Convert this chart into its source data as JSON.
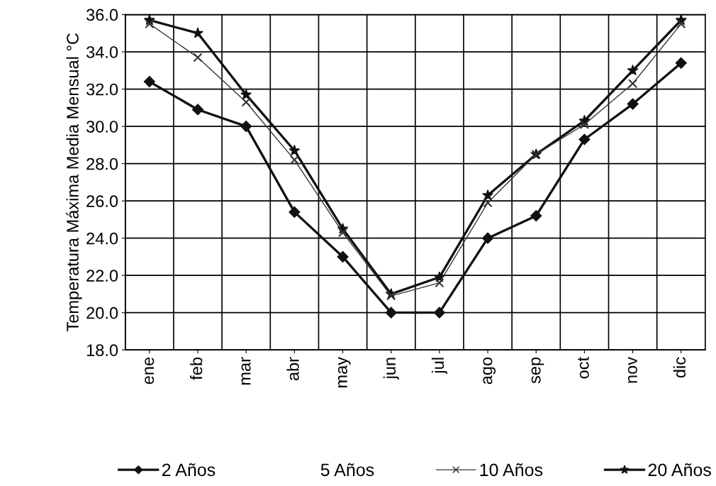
{
  "chart_data": {
    "type": "line",
    "ylabel": "Temperatura Máxima Media Mensual °C",
    "categories": [
      "ene",
      "feb",
      "mar",
      "abr",
      "may",
      "jun",
      "jul",
      "ago",
      "sep",
      "oct",
      "nov",
      "dic"
    ],
    "series": [
      {
        "name": "2 Años",
        "color": "#111111",
        "marker": "diamond",
        "values": [
          32.4,
          30.9,
          30.0,
          25.4,
          23.0,
          20.0,
          20.0,
          24.0,
          25.2,
          29.3,
          31.2,
          33.4
        ]
      },
      {
        "name": "5 Años",
        "marker": "none",
        "values": [
          null,
          null,
          null,
          null,
          null,
          null,
          null,
          null,
          null,
          null,
          null,
          null
        ]
      },
      {
        "name": "10 Años",
        "color": "#333333",
        "marker": "cross",
        "values": [
          35.5,
          33.7,
          31.3,
          28.2,
          24.3,
          20.9,
          21.6,
          25.9,
          28.5,
          30.1,
          32.3,
          35.5
        ]
      },
      {
        "name": "20 Años",
        "color": "#111111",
        "marker": "star",
        "values": [
          35.7,
          35.0,
          31.7,
          28.7,
          24.5,
          21.0,
          21.9,
          26.3,
          28.5,
          30.3,
          33.0,
          35.7
        ]
      }
    ],
    "ylim": [
      18,
      36
    ],
    "yticks": [
      {
        "value": 18,
        "label": "18.0"
      },
      {
        "value": 20,
        "label": "20.0"
      },
      {
        "value": 22,
        "label": "22.0"
      },
      {
        "value": 24,
        "label": "24.0"
      },
      {
        "value": 26,
        "label": "26.0"
      },
      {
        "value": 28,
        "label": "28.0"
      },
      {
        "value": 30,
        "label": "30.0"
      },
      {
        "value": 32,
        "label": "32.0"
      },
      {
        "value": 34,
        "label": "34.0"
      },
      {
        "value": 36,
        "label": "36.0"
      }
    ],
    "grid": true,
    "legend": "bottom",
    "line_style": "solid"
  }
}
